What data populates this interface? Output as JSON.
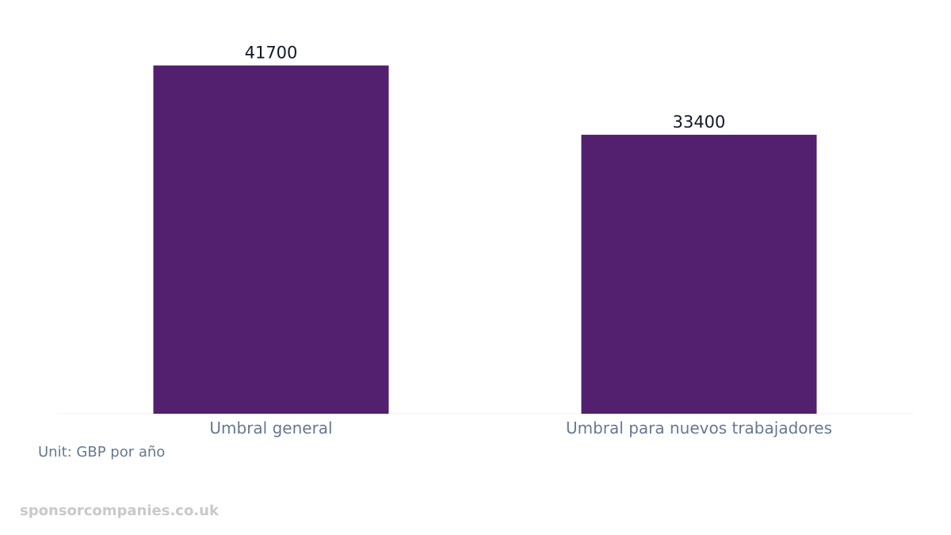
{
  "chart_data": {
    "type": "bar",
    "categories": [
      "Umbral general",
      "Umbral para nuevos trabajadores"
    ],
    "values": [
      41700,
      33400
    ],
    "data_labels": [
      "41700",
      "33400"
    ],
    "ylim": [
      0,
      46500
    ],
    "grid": false,
    "bar_color": "#52206f"
  },
  "unit_note": "Unit: GBP por año",
  "watermark": "sponsorcompanies.co.uk"
}
